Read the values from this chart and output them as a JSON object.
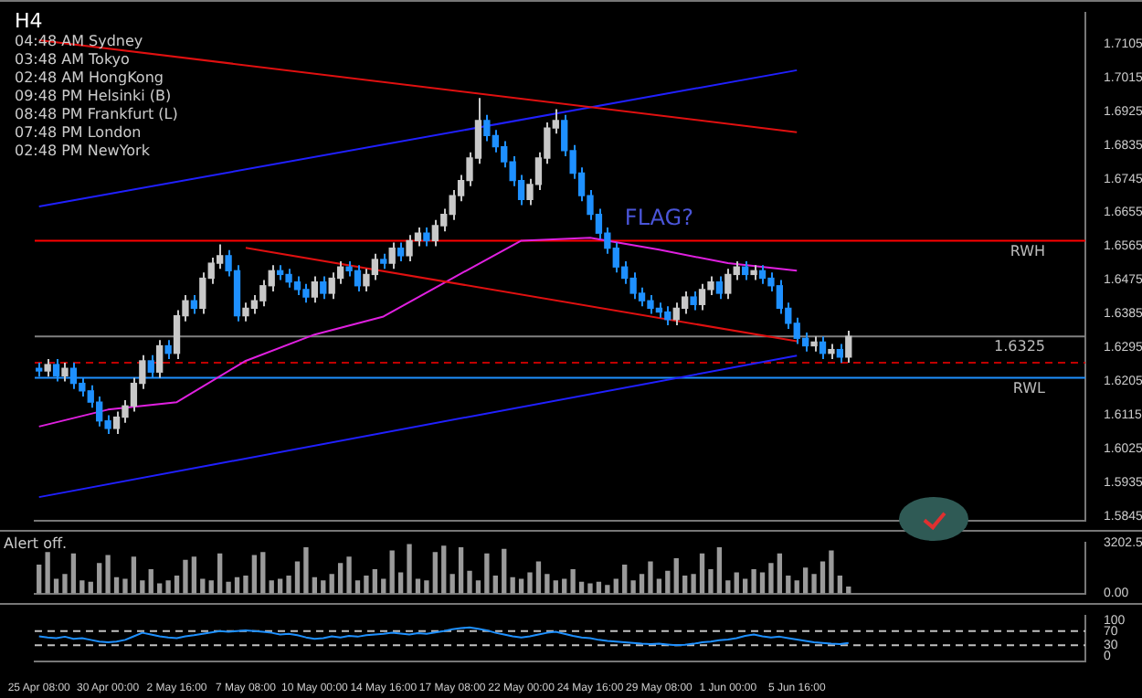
{
  "chart_data": [
    {
      "type": "candlestick",
      "title": "H4",
      "tick_labels": "y",
      "colors": [
        "#1e90ff",
        "#c8c8c8",
        "#1e90ff",
        "#c8c8c8",
        "#1e90ff",
        "#1e90ff",
        "#1e90ff",
        "#1e90ff",
        "#1e90ff",
        "#c8c8c8",
        "#c8c8c8",
        "#c8c8c8",
        "#c8c8c8",
        "#1e90ff",
        "#c8c8c8",
        "#1e90ff",
        "#c8c8c8",
        "#c8c8c8",
        "#1e90ff",
        "#c8c8c8",
        "#c8c8c8",
        "#c8c8c8",
        "#1e90ff",
        "#1e90ff",
        "#c8c8c8",
        "#c8c8c8",
        "#c8c8c8",
        "#c8c8c8",
        "#1e90ff",
        "#1e90ff",
        "#1e90ff",
        "#1e90ff",
        "#c8c8c8",
        "#1e90ff",
        "#c8c8c8",
        "#c8c8c8",
        "#1e90ff",
        "#1e90ff",
        "#c8c8c8",
        "#c8c8c8",
        "#1e90ff",
        "#c8c8c8",
        "#1e90ff",
        "#c8c8c8",
        "#c8c8c8",
        "#1e90ff",
        "#c8c8c8",
        "#c8c8c8",
        "#c8c8c8",
        "#c8c8c8",
        "#c8c8c8",
        "#c8c8c8",
        "#1e90ff",
        "#1e90ff",
        "#1e90ff",
        "#1e90ff",
        "#1e90ff",
        "#c8c8c8",
        "#c8c8c8",
        "#c8c8c8",
        "#c8c8c8",
        "#1e90ff",
        "#1e90ff",
        "#1e90ff",
        "#1e90ff",
        "#1e90ff",
        "#1e90ff",
        "#1e90ff",
        "#1e90ff",
        "#1e90ff",
        "#1e90ff",
        "#1e90ff",
        "#1e90ff",
        "#1e90ff",
        "#c8c8c8",
        "#c8c8c8",
        "#1e90ff",
        "#c8c8c8",
        "#c8c8c8",
        "#1e90ff",
        "#c8c8c8",
        "#c8c8c8",
        "#1e90ff",
        "#c8c8c8",
        "#1e90ff",
        "#1e90ff",
        "#1e90ff",
        "#1e90ff",
        "#1e90ff",
        "#1e90ff",
        "#c8c8c8",
        "#1e90ff",
        "#c8c8c8",
        "#1e90ff",
        "#c8c8c8",
        null,
        null,
        null,
        null,
        null,
        null,
        null,
        null,
        null,
        null,
        null,
        null,
        null,
        null,
        null,
        null,
        null,
        null,
        null,
        null,
        null,
        null,
        null,
        null,
        null,
        null,
        null
      ],
      "grid": false,
      "legend": false,
      "categories": [
        "25 Apr 08:00",
        null,
        null,
        null,
        null,
        null,
        null,
        null,
        "30 Apr 00:00",
        null,
        null,
        null,
        null,
        null,
        null,
        null,
        "2 May 16:00",
        null,
        null,
        null,
        null,
        null,
        null,
        null,
        "7 May 08:00",
        null,
        null,
        null,
        null,
        null,
        null,
        null,
        "10 May 00:00",
        null,
        null,
        null,
        null,
        null,
        null,
        null,
        "14 May 16:00",
        null,
        null,
        null,
        null,
        null,
        null,
        null,
        "17 May 08:00",
        null,
        null,
        null,
        null,
        null,
        null,
        null,
        "22 May 00:00",
        null,
        null,
        null,
        null,
        null,
        null,
        null,
        "24 May 16:00",
        null,
        null,
        null,
        null,
        null,
        null,
        null,
        "29 May 08:00",
        null,
        null,
        null,
        null,
        null,
        null,
        null,
        "1 Jun 00:00",
        null,
        null,
        null,
        null,
        null,
        null,
        null,
        "5 Jun 16:00",
        null,
        null,
        null,
        null,
        null,
        null,
        null,
        null,
        null,
        null,
        null,
        null,
        null,
        null,
        null,
        null,
        null,
        null,
        null,
        null,
        null,
        null,
        null,
        null,
        null,
        null,
        null,
        null,
        null,
        null,
        null,
        null,
        null
      ],
      "ohlc": [
        [
          1.624,
          1.6255,
          1.6218,
          1.6233
        ],
        [
          1.6233,
          1.6265,
          1.6218,
          1.625
        ],
        [
          1.625,
          1.6265,
          1.6205,
          1.622
        ],
        [
          1.622,
          1.6255,
          1.6205,
          1.624
        ],
        [
          1.624,
          1.6255,
          1.6185,
          1.62
        ],
        [
          1.62,
          1.6215,
          1.6165,
          1.618
        ],
        [
          1.618,
          1.6195,
          1.6135,
          1.615
        ],
        [
          1.615,
          1.6165,
          1.6085,
          1.61
        ],
        [
          1.61,
          1.6115,
          1.6065,
          1.608
        ],
        [
          1.608,
          1.6125,
          1.6065,
          1.611
        ],
        [
          1.611,
          1.6155,
          1.6095,
          1.614
        ],
        [
          1.614,
          1.6215,
          1.6125,
          1.62
        ],
        [
          1.62,
          1.6275,
          1.6185,
          1.626
        ],
        [
          1.626,
          1.6275,
          1.6215,
          1.623
        ],
        [
          1.623,
          1.6315,
          1.6215,
          1.63
        ],
        [
          1.63,
          1.6315,
          1.6265,
          1.628
        ],
        [
          1.628,
          1.6395,
          1.6265,
          1.638
        ],
        [
          1.638,
          1.6435,
          1.6365,
          1.642
        ],
        [
          1.642,
          1.6435,
          1.6385,
          1.64
        ],
        [
          1.64,
          1.6495,
          1.6385,
          1.648
        ],
        [
          1.648,
          1.6535,
          1.6465,
          1.652
        ],
        [
          1.652,
          1.657,
          1.6505,
          1.654
        ],
        [
          1.654,
          1.6555,
          1.6485,
          1.65
        ],
        [
          1.65,
          1.6515,
          1.6365,
          1.638
        ],
        [
          1.638,
          1.6415,
          1.6365,
          1.64
        ],
        [
          1.64,
          1.6435,
          1.6385,
          1.642
        ],
        [
          1.642,
          1.6475,
          1.6405,
          1.646
        ],
        [
          1.646,
          1.6515,
          1.6445,
          1.65
        ],
        [
          1.65,
          1.6515,
          1.6475,
          1.649
        ],
        [
          1.649,
          1.6505,
          1.6455,
          1.647
        ],
        [
          1.647,
          1.6485,
          1.6435,
          1.645
        ],
        [
          1.645,
          1.6465,
          1.6415,
          1.643
        ],
        [
          1.643,
          1.6485,
          1.6415,
          1.647
        ],
        [
          1.647,
          1.6485,
          1.6425,
          1.644
        ],
        [
          1.644,
          1.6495,
          1.6425,
          1.648
        ],
        [
          1.648,
          1.6525,
          1.6465,
          1.651
        ],
        [
          1.651,
          1.6525,
          1.6485,
          1.65
        ],
        [
          1.65,
          1.6515,
          1.6445,
          1.646
        ],
        [
          1.646,
          1.6505,
          1.6445,
          1.649
        ],
        [
          1.649,
          1.6545,
          1.6475,
          1.653
        ],
        [
          1.653,
          1.6545,
          1.6505,
          1.652
        ],
        [
          1.652,
          1.6575,
          1.6505,
          1.656
        ],
        [
          1.656,
          1.6575,
          1.6525,
          1.654
        ],
        [
          1.654,
          1.6595,
          1.6525,
          1.658
        ],
        [
          1.658,
          1.6615,
          1.6565,
          1.66
        ],
        [
          1.66,
          1.6615,
          1.6565,
          1.658
        ],
        [
          1.658,
          1.6635,
          1.6565,
          1.662
        ],
        [
          1.662,
          1.6665,
          1.6605,
          1.665
        ],
        [
          1.665,
          1.6715,
          1.6635,
          1.67
        ],
        [
          1.67,
          1.6755,
          1.6685,
          1.674
        ],
        [
          1.674,
          1.6815,
          1.6725,
          1.68
        ],
        [
          1.68,
          1.696,
          1.6785,
          1.69
        ],
        [
          1.69,
          1.6915,
          1.6845,
          1.686
        ],
        [
          1.686,
          1.6875,
          1.6815,
          1.683
        ],
        [
          1.683,
          1.6845,
          1.6775,
          1.679
        ],
        [
          1.679,
          1.6805,
          1.6725,
          1.674
        ],
        [
          1.674,
          1.6755,
          1.6675,
          1.669
        ],
        [
          1.669,
          1.6745,
          1.6675,
          1.673
        ],
        [
          1.673,
          1.6815,
          1.6715,
          1.68
        ],
        [
          1.68,
          1.6895,
          1.6785,
          1.688
        ],
        [
          1.688,
          1.693,
          1.6865,
          1.69
        ],
        [
          1.69,
          1.6915,
          1.6805,
          1.682
        ],
        [
          1.682,
          1.6835,
          1.6745,
          1.676
        ],
        [
          1.676,
          1.6775,
          1.6685,
          1.67
        ],
        [
          1.67,
          1.6715,
          1.6635,
          1.665
        ],
        [
          1.665,
          1.6665,
          1.6585,
          1.66
        ],
        [
          1.66,
          1.6615,
          1.6545,
          1.656
        ],
        [
          1.656,
          1.6575,
          1.6495,
          1.651
        ],
        [
          1.651,
          1.6525,
          1.6465,
          1.648
        ],
        [
          1.648,
          1.6495,
          1.6425,
          1.644
        ],
        [
          1.644,
          1.6455,
          1.6405,
          1.642
        ],
        [
          1.642,
          1.6435,
          1.6385,
          1.64
        ],
        [
          1.64,
          1.6415,
          1.6375,
          1.639
        ],
        [
          1.639,
          1.6405,
          1.6355,
          1.637
        ],
        [
          1.637,
          1.6415,
          1.6355,
          1.64
        ],
        [
          1.64,
          1.6445,
          1.6385,
          1.643
        ],
        [
          1.643,
          1.6445,
          1.6395,
          1.641
        ],
        [
          1.641,
          1.6465,
          1.6395,
          1.645
        ],
        [
          1.645,
          1.6485,
          1.6435,
          1.647
        ],
        [
          1.647,
          1.6485,
          1.6425,
          1.644
        ],
        [
          1.644,
          1.6505,
          1.6425,
          1.649
        ],
        [
          1.649,
          1.6525,
          1.6475,
          1.651
        ],
        [
          1.651,
          1.6525,
          1.6475,
          1.649
        ],
        [
          1.649,
          1.6515,
          1.6475,
          1.65
        ],
        [
          1.65,
          1.6515,
          1.6465,
          1.648
        ],
        [
          1.648,
          1.6495,
          1.6445,
          1.646
        ],
        [
          1.646,
          1.6475,
          1.6385,
          1.64
        ],
        [
          1.64,
          1.6415,
          1.6345,
          1.636
        ],
        [
          1.636,
          1.6375,
          1.6305,
          1.632
        ],
        [
          1.632,
          1.6335,
          1.6285,
          1.63
        ],
        [
          1.63,
          1.6325,
          1.6285,
          1.631
        ],
        [
          1.631,
          1.6325,
          1.6265,
          1.628
        ],
        [
          1.628,
          1.6305,
          1.6265,
          1.629
        ],
        [
          1.629,
          1.6305,
          1.6255,
          1.627
        ],
        [
          1.627,
          1.634,
          1.6255,
          1.6325
        ],
        null,
        null,
        null,
        null,
        null,
        null,
        null,
        null,
        null,
        null,
        null,
        null,
        null,
        null,
        null,
        null,
        null,
        null,
        null,
        null,
        null,
        null,
        null,
        null,
        null,
        null,
        null
      ],
      "series": [
        {
          "type": "line",
          "color": "#e01010",
          "x": [
            "25 Apr 08:00",
            "5 Jun 16:00"
          ],
          "values": [
            1.7114,
            1.6869
          ]
        },
        {
          "type": "line",
          "color": "#e01010",
          "x": [
            "7 May 08:00",
            "5 Jun 16:00"
          ],
          "values": [
            1.6561,
            1.6312
          ]
        },
        {
          "type": "line",
          "color": "#2020ff",
          "x": [
            "25 Apr 08:00",
            "5 Jun 16:00"
          ],
          "values": [
            1.6671,
            1.7034
          ]
        },
        {
          "type": "line",
          "color": "#2020ff",
          "x": [
            "25 Apr 08:00",
            "5 Jun 16:00"
          ],
          "values": [
            1.5897,
            1.6274
          ]
        },
        {
          "type": "line",
          "color": "#e020e0",
          "x": [
            "25 Apr 08:00",
            "30 Apr 00:00",
            "2 May 16:00",
            "7 May 08:00",
            "10 May 00:00",
            "14 May 16:00",
            "17 May 08:00",
            "22 May 00:00",
            "24 May 16:00",
            "29 May 08:00",
            "1 Jun 00:00",
            "5 Jun 16:00"
          ],
          "values": [
            1.6085,
            1.613,
            1.615,
            1.626,
            1.633,
            1.6378,
            1.648,
            1.658,
            1.6588,
            1.6556,
            1.652,
            1.65
          ]
        }
      ],
      "ylim": [
        1.5835,
        1.7186
      ],
      "yticks": [
        1.7105,
        1.7015,
        1.6925,
        1.6835,
        1.6745,
        1.6655,
        1.6565,
        1.6475,
        1.6385,
        1.6295,
        1.6205,
        1.6115,
        1.6025,
        1.5935,
        1.5845
      ],
      "ref_lines": [
        {
          "axis": "y",
          "value": 1.658,
          "label": "RWH",
          "color": "#ff0000"
        },
        {
          "axis": "y",
          "value": 1.6215,
          "label": "RWL",
          "color": "#1e90ff"
        },
        {
          "axis": "y",
          "value": 1.6255,
          "color": "#c00000",
          "line_style": "dashed"
        },
        {
          "axis": "y",
          "value": 1.6325,
          "label": "1.6325",
          "color": "#808080"
        }
      ],
      "annotations": [
        "04:48 AM Sydney",
        "03:48 AM Tokyo",
        "02:48 AM HongKong",
        "09:48 PM Helsinki (B)",
        "08:48 PM Frankfurt (L)",
        "07:48 PM London",
        "02:48 PM NewYork",
        {
          "text": "FLAG?",
          "x": "29 May 08:00",
          "y": 1.658
        }
      ]
    },
    {
      "type": "bar",
      "color": "#9a9a9a",
      "tick_labels": "y",
      "grid": false,
      "legend": false,
      "categories": [
        "25 Apr 08:00",
        null,
        null,
        null,
        null,
        null,
        null,
        null,
        "30 Apr 00:00",
        null,
        null,
        null,
        null,
        null,
        null,
        null,
        "2 May 16:00",
        null,
        null,
        null,
        null,
        null,
        null,
        null,
        "7 May 08:00",
        null,
        null,
        null,
        null,
        null,
        null,
        null,
        "10 May 00:00",
        null,
        null,
        null,
        null,
        null,
        null,
        null,
        "14 May 16:00",
        null,
        null,
        null,
        null,
        null,
        null,
        null,
        "17 May 08:00",
        null,
        null,
        null,
        null,
        null,
        null,
        null,
        "22 May 00:00",
        null,
        null,
        null,
        null,
        null,
        null,
        null,
        "24 May 16:00",
        null,
        null,
        null,
        null,
        null,
        null,
        null,
        "29 May 08:00",
        null,
        null,
        null,
        null,
        null,
        null,
        null,
        "1 Jun 00:00",
        null,
        null,
        null,
        null,
        null,
        null,
        null,
        "5 Jun 16:00",
        null,
        null,
        null,
        null,
        null,
        null,
        null,
        null,
        null,
        null,
        null,
        null,
        null,
        null,
        null,
        null,
        null,
        null,
        null,
        null,
        null,
        null,
        null,
        null,
        null,
        null,
        null,
        null,
        null,
        null,
        null,
        null,
        null
      ],
      "values": [
        1800,
        2600,
        900,
        1200,
        2500,
        800,
        700,
        1900,
        2400,
        1000,
        900,
        2300,
        800,
        1500,
        600,
        800,
        1100,
        2100,
        2300,
        900,
        800,
        2500,
        700,
        1000,
        1100,
        2400,
        2600,
        800,
        900,
        1100,
        2000,
        2900,
        1000,
        800,
        1200,
        1900,
        2300,
        800,
        1100,
        1500,
        900,
        2700,
        1300,
        3100,
        900,
        800,
        2600,
        3000,
        1200,
        2900,
        1400,
        800,
        2500,
        1100,
        2800,
        1000,
        900,
        1300,
        2000,
        1200,
        800,
        900,
        1500,
        700,
        600,
        700,
        500,
        900,
        1800,
        800,
        1200,
        2000,
        900,
        1400,
        2200,
        1100,
        1200,
        2500,
        1500,
        2900,
        800,
        1300,
        900,
        1500,
        1300,
        1900,
        2500,
        1100,
        800,
        1600,
        1200,
        2000,
        2700,
        1100,
        400,
        null,
        null,
        null,
        null,
        null,
        null,
        null,
        null,
        null,
        null,
        null,
        null,
        null,
        null,
        null,
        null,
        null,
        null,
        null,
        null,
        null,
        null,
        null,
        null,
        null,
        null,
        null
      ],
      "ylim": [
        0,
        3202.5
      ],
      "yticks": [
        {
          "value": 0,
          "label": "0.00"
        },
        3202.5
      ],
      "annotations": [
        "Alert off."
      ]
    },
    {
      "type": "line",
      "color": "#1e90ff",
      "grid": false,
      "legend": false,
      "categories": [
        "25 Apr 08:00",
        null,
        null,
        null,
        null,
        null,
        null,
        null,
        "30 Apr 00:00",
        null,
        null,
        null,
        null,
        null,
        null,
        null,
        "2 May 16:00",
        null,
        null,
        null,
        null,
        null,
        null,
        null,
        "7 May 08:00",
        null,
        null,
        null,
        null,
        null,
        null,
        null,
        "10 May 00:00",
        null,
        null,
        null,
        null,
        null,
        null,
        null,
        "14 May 16:00",
        null,
        null,
        null,
        null,
        null,
        null,
        null,
        "17 May 08:00",
        null,
        null,
        null,
        null,
        null,
        null,
        null,
        "22 May 00:00",
        null,
        null,
        null,
        null,
        null,
        null,
        null,
        "24 May 16:00",
        null,
        null,
        null,
        null,
        null,
        null,
        null,
        "29 May 08:00",
        null,
        null,
        null,
        null,
        null,
        null,
        null,
        "1 Jun 00:00",
        null,
        null,
        null,
        null,
        null,
        null,
        null,
        "5 Jun 16:00",
        null,
        null,
        null,
        null,
        null,
        null,
        null,
        null,
        null,
        null,
        null,
        null,
        null,
        null,
        null,
        null,
        null,
        null,
        null,
        null,
        null,
        null,
        null,
        null,
        null,
        null,
        null,
        null,
        null,
        null,
        null,
        null,
        null
      ],
      "values": [
        55,
        52,
        50,
        54,
        48,
        50,
        45,
        40,
        38,
        40,
        45,
        55,
        65,
        60,
        55,
        52,
        50,
        55,
        58,
        62,
        66,
        70,
        68,
        70,
        72,
        70,
        68,
        65,
        60,
        62,
        58,
        52,
        48,
        50,
        55,
        52,
        56,
        54,
        58,
        60,
        62,
        65,
        63,
        60,
        64,
        62,
        66,
        70,
        75,
        78,
        80,
        76,
        72,
        65,
        60,
        55,
        52,
        55,
        60,
        65,
        68,
        62,
        56,
        52,
        50,
        45,
        42,
        40,
        38,
        36,
        34,
        33,
        34,
        32,
        30,
        31,
        34,
        38,
        40,
        44,
        46,
        50,
        56,
        60,
        55,
        52,
        54,
        50,
        46,
        42,
        38,
        36,
        34,
        33,
        36,
        null,
        null,
        null,
        null,
        null,
        null,
        null,
        null,
        null,
        null,
        null,
        null,
        null,
        null,
        null,
        null,
        null,
        null,
        null,
        null,
        null,
        null,
        null,
        null,
        null,
        null,
        null
      ],
      "ylim": [
        -15,
        112
      ],
      "yticks": [
        0,
        30,
        70,
        100
      ],
      "ref_lines": [
        {
          "axis": "y",
          "value": 70,
          "color": "#c0c0c0",
          "line_style": "dashed"
        },
        {
          "axis": "y",
          "value": 30,
          "color": "#c0c0c0",
          "line_style": "dashed"
        }
      ]
    }
  ]
}
